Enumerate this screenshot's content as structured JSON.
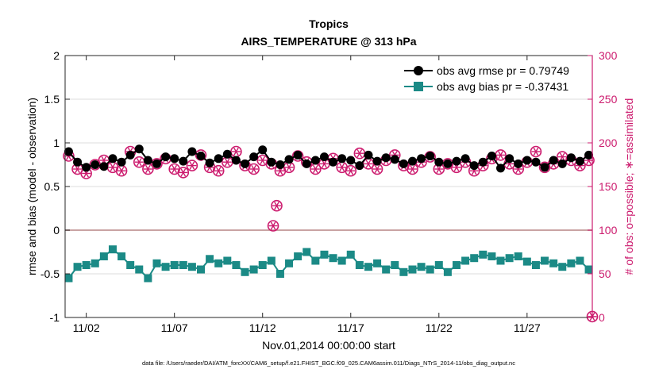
{
  "chart_data": {
    "type": "line",
    "title": "Tropics",
    "subtitle": "AIRS_TEMPERATURE @ 313 hPa",
    "xlabel": "Nov.01,2014 00:00:00 start",
    "ylabel_left": "rmse and bias (model - observation)",
    "ylabel_right": "# of obs: o=possible; ∗=assimilated",
    "footnote": "data file: /Users/raeder/DAI/ATM_forcXX/CAM6_setup/f.e21.FHIST_BGC.f09_025.CAM6assim.011/Diags_NTrS_2014-11/obs_diag_output.nc",
    "xlim": [
      0.8,
      30.7
    ],
    "ylim_left": [
      -1,
      2
    ],
    "ylim_right": [
      0,
      300
    ],
    "x_ticks": [
      2,
      7,
      12,
      17,
      22,
      27
    ],
    "x_tick_labels": [
      "11/02",
      "11/07",
      "11/12",
      "11/17",
      "11/22",
      "11/27"
    ],
    "y_ticks_left": [
      -1,
      -0.5,
      0,
      0.5,
      1,
      1.5,
      2
    ],
    "y_tick_labels_left": [
      "-1",
      "-0.5",
      "0",
      "0.5",
      "1",
      "1.5",
      "2"
    ],
    "y_ticks_right": [
      0,
      50,
      100,
      150,
      200,
      250,
      300
    ],
    "y_tick_labels_right": [
      "0",
      "50",
      "100",
      "150",
      "200",
      "250",
      "300"
    ],
    "colors": {
      "rmse": "#000000",
      "bias": "#1b8a86",
      "obs": "#cc1b6e",
      "zero_line": "#c9a3a3"
    },
    "legend": {
      "location": "top-right",
      "entries": [
        "obs avg rmse pr = 0.79749",
        "obs avg bias pr = -0.37431"
      ]
    },
    "series": [
      {
        "name": "obs avg rmse pr",
        "axis": "left",
        "marker": "circle",
        "x": [
          1.0,
          1.5,
          2.0,
          2.5,
          3.0,
          3.5,
          4.0,
          4.5,
          5.0,
          5.5,
          6.0,
          6.5,
          7.0,
          7.5,
          8.0,
          8.5,
          9.0,
          9.5,
          10.0,
          10.5,
          11.0,
          11.5,
          12.0,
          12.5,
          13.0,
          13.5,
          14.0,
          14.5,
          15.0,
          15.5,
          16.0,
          16.5,
          17.0,
          17.5,
          18.0,
          18.5,
          19.0,
          19.5,
          20.0,
          20.5,
          21.0,
          21.5,
          22.0,
          22.5,
          23.0,
          23.5,
          24.0,
          24.5,
          25.0,
          25.5,
          26.0,
          26.5,
          27.0,
          27.5,
          28.0,
          28.5,
          29.0,
          29.5,
          30.0,
          30.5
        ],
        "values": [
          0.9,
          0.78,
          0.72,
          0.75,
          0.73,
          0.82,
          0.78,
          0.86,
          0.93,
          0.8,
          0.76,
          0.84,
          0.82,
          0.79,
          0.9,
          0.85,
          0.77,
          0.82,
          0.87,
          0.8,
          0.76,
          0.84,
          0.92,
          0.78,
          0.75,
          0.81,
          0.86,
          0.76,
          0.8,
          0.84,
          0.78,
          0.82,
          0.8,
          0.74,
          0.86,
          0.79,
          0.83,
          0.81,
          0.76,
          0.79,
          0.82,
          0.85,
          0.78,
          0.76,
          0.79,
          0.82,
          0.74,
          0.78,
          0.85,
          0.71,
          0.82,
          0.76,
          0.8,
          0.78,
          0.72,
          0.8,
          0.76,
          0.83,
          0.79,
          0.86
        ]
      },
      {
        "name": "obs avg bias pr",
        "axis": "left",
        "marker": "square",
        "x": [
          1.0,
          1.5,
          2.0,
          2.5,
          3.0,
          3.5,
          4.0,
          4.5,
          5.0,
          5.5,
          6.0,
          6.5,
          7.0,
          7.5,
          8.0,
          8.5,
          9.0,
          9.5,
          10.0,
          10.5,
          11.0,
          11.5,
          12.0,
          12.5,
          13.0,
          13.5,
          14.0,
          14.5,
          15.0,
          15.5,
          16.0,
          16.5,
          17.0,
          17.5,
          18.0,
          18.5,
          19.0,
          19.5,
          20.0,
          20.5,
          21.0,
          21.5,
          22.0,
          22.5,
          23.0,
          23.5,
          24.0,
          24.5,
          25.0,
          25.5,
          26.0,
          26.5,
          27.0,
          27.5,
          28.0,
          28.5,
          29.0,
          29.5,
          30.0,
          30.5
        ],
        "values": [
          -0.55,
          -0.42,
          -0.4,
          -0.38,
          -0.3,
          -0.22,
          -0.3,
          -0.4,
          -0.45,
          -0.55,
          -0.38,
          -0.42,
          -0.4,
          -0.4,
          -0.42,
          -0.45,
          -0.33,
          -0.38,
          -0.35,
          -0.4,
          -0.48,
          -0.45,
          -0.4,
          -0.35,
          -0.5,
          -0.38,
          -0.3,
          -0.25,
          -0.35,
          -0.28,
          -0.32,
          -0.35,
          -0.28,
          -0.4,
          -0.42,
          -0.38,
          -0.45,
          -0.4,
          -0.48,
          -0.45,
          -0.42,
          -0.45,
          -0.4,
          -0.48,
          -0.4,
          -0.35,
          -0.32,
          -0.28,
          -0.3,
          -0.35,
          -0.32,
          -0.3,
          -0.36,
          -0.4,
          -0.35,
          -0.38,
          -0.42,
          -0.38,
          -0.35,
          -0.45
        ]
      },
      {
        "name": "# of obs possible",
        "axis": "right",
        "marker": "circle-open",
        "x": [
          1.0,
          1.5,
          2.0,
          2.5,
          3.0,
          3.5,
          4.0,
          4.5,
          5.0,
          5.5,
          6.0,
          6.5,
          7.0,
          7.5,
          8.0,
          8.5,
          9.0,
          9.5,
          10.0,
          10.5,
          11.0,
          11.5,
          12.0,
          12.5,
          12.6,
          12.8,
          13.0,
          13.5,
          14.0,
          14.5,
          15.0,
          15.5,
          16.0,
          16.5,
          17.0,
          17.5,
          18.0,
          18.5,
          19.0,
          19.5,
          20.0,
          20.5,
          21.0,
          21.5,
          22.0,
          22.5,
          23.0,
          23.5,
          24.0,
          24.5,
          25.0,
          25.5,
          26.0,
          26.5,
          27.0,
          27.5,
          28.0,
          28.5,
          29.0,
          29.5,
          30.0,
          30.5,
          30.7
        ],
        "values": [
          185,
          170,
          165,
          175,
          180,
          172,
          168,
          190,
          178,
          170,
          176,
          182,
          170,
          166,
          174,
          186,
          172,
          168,
          178,
          190,
          174,
          170,
          180,
          176,
          105,
          128,
          168,
          172,
          185,
          178,
          170,
          176,
          182,
          172,
          168,
          188,
          176,
          170,
          180,
          186,
          174,
          170,
          178,
          184,
          170,
          176,
          172,
          178,
          168,
          174,
          182,
          186,
          176,
          170,
          178,
          190,
          172,
          176,
          184,
          180,
          174,
          180,
          1
        ]
      },
      {
        "name": "# of obs assimilated",
        "axis": "right",
        "marker": "asterisk",
        "x": [
          1.0,
          1.5,
          2.0,
          2.5,
          3.0,
          3.5,
          4.0,
          4.5,
          5.0,
          5.5,
          6.0,
          6.5,
          7.0,
          7.5,
          8.0,
          8.5,
          9.0,
          9.5,
          10.0,
          10.5,
          11.0,
          11.5,
          12.0,
          12.5,
          12.6,
          12.8,
          13.0,
          13.5,
          14.0,
          14.5,
          15.0,
          15.5,
          16.0,
          16.5,
          17.0,
          17.5,
          18.0,
          18.5,
          19.0,
          19.5,
          20.0,
          20.5,
          21.0,
          21.5,
          22.0,
          22.5,
          23.0,
          23.5,
          24.0,
          24.5,
          25.0,
          25.5,
          26.0,
          26.5,
          27.0,
          27.5,
          28.0,
          28.5,
          29.0,
          29.5,
          30.0,
          30.5,
          30.7
        ],
        "values": [
          185,
          170,
          165,
          175,
          180,
          172,
          168,
          190,
          178,
          170,
          176,
          182,
          170,
          166,
          174,
          186,
          172,
          168,
          178,
          190,
          174,
          170,
          180,
          176,
          105,
          128,
          168,
          172,
          185,
          178,
          170,
          176,
          182,
          172,
          168,
          188,
          176,
          170,
          180,
          186,
          174,
          170,
          178,
          184,
          170,
          176,
          172,
          178,
          168,
          174,
          182,
          186,
          176,
          170,
          178,
          190,
          172,
          176,
          184,
          180,
          174,
          180,
          1
        ]
      }
    ]
  }
}
